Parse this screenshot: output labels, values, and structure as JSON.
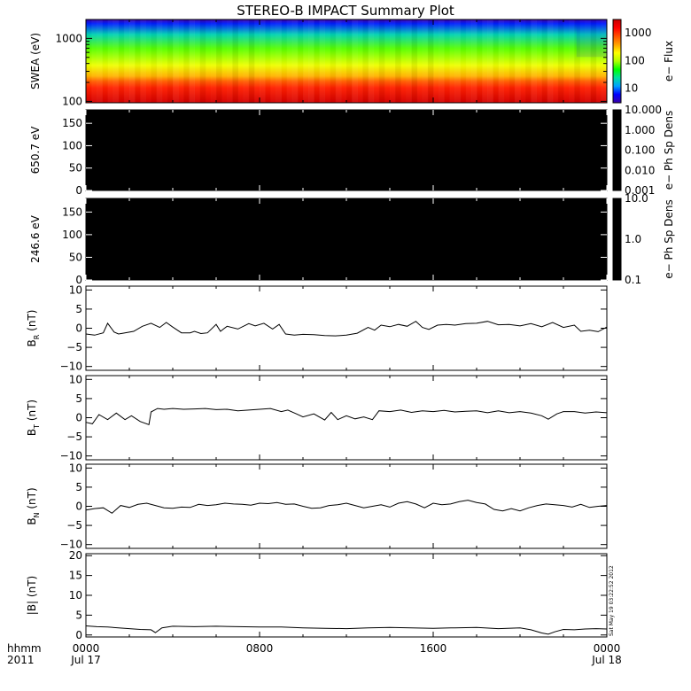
{
  "chart_data": {
    "type": "line",
    "title": "STEREO-B IMPACT Summary Plot",
    "timestamp_note": "Sat May 19 03:22:52 2012",
    "time_axis": {
      "row1_label": "hhmm",
      "row2_label": "2011",
      "hours_range": [
        0,
        24
      ],
      "ticks": [
        {
          "hour": 0,
          "hhmm": "0000",
          "date": "Jul 17"
        },
        {
          "hour": 8,
          "hhmm": "0800",
          "date": ""
        },
        {
          "hour": 16,
          "hhmm": "1600",
          "date": ""
        },
        {
          "hour": 24,
          "hhmm": "0000",
          "date": "Jul 18"
        }
      ]
    },
    "panels": [
      {
        "id": "swea",
        "type": "heatmap",
        "ylabel": "SWEA (eV)",
        "ylog": true,
        "ylim": [
          95,
          2000
        ],
        "yticks": [
          100,
          1000
        ],
        "ytick_labels": [
          "100",
          "1000"
        ],
        "colorbar": {
          "label": "e− Flux",
          "scale": "log",
          "range": [
            3,
            3000
          ],
          "tick_values": [
            10,
            100,
            1000
          ],
          "tick_labels": [
            "10",
            "100",
            "1000"
          ],
          "colors": [
            "#3b00a8",
            "#0000ff",
            "#00a0ff",
            "#00e0a0",
            "#00ff00",
            "#b0ff00",
            "#ffff00",
            "#ffa000",
            "#ff5000",
            "#ff0000",
            "#c80000"
          ]
        }
      },
      {
        "id": "pad650",
        "type": "heatmap",
        "ylabel": "650.7 eV",
        "ylim": [
          0,
          180
        ],
        "yticks": [
          0,
          50,
          100,
          150
        ],
        "ytick_labels": [
          "0",
          "50",
          "100",
          "150"
        ],
        "fill_color": "#000000",
        "colorbar": {
          "label": "e− Ph Sp Dens",
          "scale": "log",
          "range": [
            0.001,
            10
          ],
          "tick_values": [
            10,
            1,
            0.1,
            0.01,
            0.001
          ],
          "tick_labels": [
            "10.000",
            "1.000",
            "0.100",
            "0.010",
            "0.001"
          ],
          "colors": [
            "#000000"
          ]
        }
      },
      {
        "id": "pad246",
        "type": "heatmap",
        "ylabel": "246.6 eV",
        "ylim": [
          0,
          180
        ],
        "yticks": [
          0,
          50,
          100,
          150
        ],
        "ytick_labels": [
          "0",
          "50",
          "100",
          "150"
        ],
        "fill_color": "#000000",
        "colorbar": {
          "label": "e− Ph Sp Dens",
          "scale": "log",
          "range": [
            0.1,
            10
          ],
          "tick_values": [
            10,
            1,
            0.1
          ],
          "tick_labels": [
            "10.0",
            "1.0",
            "0.1"
          ],
          "colors": [
            "#000000"
          ]
        }
      },
      {
        "id": "br",
        "type": "line",
        "ylabel_main": "B",
        "ylabel_sub": "R",
        "ylabel_unit": " (nT)",
        "ylim": [
          -11,
          11
        ],
        "yticks": [
          -10,
          -5,
          0,
          5,
          10
        ],
        "ytick_labels": [
          "−10",
          "−5",
          "0",
          "5",
          "10"
        ],
        "x": [
          0,
          0.4,
          0.8,
          1.0,
          1.3,
          1.5,
          1.8,
          2.2,
          2.6,
          3.0,
          3.4,
          3.7,
          4.0,
          4.4,
          4.8,
          5.0,
          5.3,
          5.6,
          6.0,
          6.2,
          6.5,
          7.0,
          7.5,
          7.8,
          8.2,
          8.6,
          8.9,
          9.2,
          9.6,
          10.0,
          10.5,
          11.0,
          11.5,
          12.0,
          12.5,
          13.0,
          13.3,
          13.6,
          14.0,
          14.4,
          14.8,
          15.2,
          15.5,
          15.8,
          16.2,
          16.6,
          17.0,
          17.5,
          18.0,
          18.5,
          19.0,
          19.5,
          20.0,
          20.5,
          21.0,
          21.5,
          22.0,
          22.5,
          22.8,
          23.2,
          23.6,
          24.0
        ],
        "y": [
          -1.5,
          -1.8,
          -1.2,
          1.3,
          -1.0,
          -1.5,
          -1.2,
          -0.8,
          0.5,
          1.3,
          0.2,
          1.5,
          0.3,
          -1.2,
          -1.2,
          -0.8,
          -1.4,
          -1.2,
          1.0,
          -0.8,
          0.5,
          -0.2,
          1.2,
          0.6,
          1.3,
          -0.2,
          1.0,
          -1.5,
          -1.8,
          -1.6,
          -1.7,
          -1.9,
          -2.0,
          -1.8,
          -1.3,
          0.2,
          -0.5,
          0.8,
          0.4,
          1.0,
          0.5,
          1.8,
          0.2,
          -0.3,
          0.8,
          1.0,
          0.8,
          1.2,
          1.3,
          1.8,
          0.9,
          1.0,
          0.6,
          1.2,
          0.4,
          1.5,
          0.2,
          0.8,
          -0.8,
          -0.5,
          -0.9,
          0.3
        ]
      },
      {
        "id": "bt",
        "type": "line",
        "ylabel_main": "B",
        "ylabel_sub": "T",
        "ylabel_unit": " (nT)",
        "ylim": [
          -11,
          11
        ],
        "yticks": [
          -10,
          -5,
          0,
          5,
          10
        ],
        "ytick_labels": [
          "−10",
          "−5",
          "0",
          "5",
          "10"
        ],
        "x": [
          0,
          0.3,
          0.6,
          1.0,
          1.4,
          1.8,
          2.1,
          2.5,
          2.9,
          3.0,
          3.3,
          3.6,
          4.0,
          4.5,
          5.0,
          5.5,
          6.0,
          6.5,
          7.0,
          7.5,
          8.0,
          8.5,
          9.0,
          9.3,
          9.7,
          10.0,
          10.5,
          11.0,
          11.3,
          11.6,
          12.0,
          12.4,
          12.8,
          13.2,
          13.5,
          14.0,
          14.5,
          15.0,
          15.5,
          16.0,
          16.5,
          17.0,
          17.5,
          18.0,
          18.5,
          19.0,
          19.5,
          20.0,
          20.5,
          21.0,
          21.3,
          21.7,
          22.0,
          22.5,
          23.0,
          23.5,
          24.0
        ],
        "y": [
          -1.2,
          -1.6,
          0.8,
          -0.5,
          1.2,
          -0.5,
          0.5,
          -1.0,
          -1.8,
          1.5,
          2.4,
          2.2,
          2.4,
          2.2,
          2.3,
          2.4,
          2.1,
          2.2,
          1.8,
          2.0,
          2.2,
          2.4,
          1.6,
          2.0,
          1.0,
          0.2,
          1.0,
          -0.6,
          1.4,
          -0.5,
          0.5,
          -0.3,
          0.2,
          -0.5,
          1.8,
          1.6,
          2.0,
          1.4,
          1.8,
          1.6,
          1.9,
          1.5,
          1.7,
          1.8,
          1.3,
          1.8,
          1.3,
          1.6,
          1.2,
          0.5,
          -0.4,
          1.0,
          1.6,
          1.6,
          1.2,
          1.5,
          1.3
        ]
      },
      {
        "id": "bn",
        "type": "line",
        "ylabel_main": "B",
        "ylabel_sub": "N",
        "ylabel_unit": " (nT)",
        "ylim": [
          -11,
          11
        ],
        "yticks": [
          -10,
          -5,
          0,
          5,
          10
        ],
        "ytick_labels": [
          "−10",
          "−5",
          "0",
          "5",
          "10"
        ],
        "x": [
          0,
          0.4,
          0.8,
          1.2,
          1.6,
          2.0,
          2.4,
          2.8,
          3.2,
          3.6,
          4.0,
          4.4,
          4.8,
          5.2,
          5.6,
          6.0,
          6.4,
          6.8,
          7.2,
          7.6,
          8.0,
          8.4,
          8.8,
          9.2,
          9.6,
          10.0,
          10.4,
          10.8,
          11.2,
          11.6,
          12.0,
          12.4,
          12.8,
          13.2,
          13.6,
          14.0,
          14.4,
          14.8,
          15.2,
          15.6,
          16.0,
          16.4,
          16.8,
          17.2,
          17.6,
          18.0,
          18.4,
          18.8,
          19.2,
          19.6,
          20.0,
          20.4,
          20.8,
          21.2,
          21.6,
          22.0,
          22.4,
          22.8,
          23.2,
          23.6,
          24.0
        ],
        "y": [
          -1.0,
          -0.6,
          -0.4,
          -1.8,
          0.2,
          -0.3,
          0.5,
          0.8,
          0.2,
          -0.4,
          -0.5,
          -0.2,
          -0.3,
          0.5,
          0.2,
          0.4,
          0.8,
          0.6,
          0.5,
          0.3,
          0.8,
          0.7,
          1.0,
          0.5,
          0.6,
          0.0,
          -0.5,
          -0.4,
          0.2,
          0.4,
          0.8,
          0.2,
          -0.4,
          0.0,
          0.4,
          -0.2,
          0.8,
          1.2,
          0.6,
          -0.4,
          0.8,
          0.4,
          0.6,
          1.2,
          1.6,
          1.0,
          0.6,
          -0.8,
          -1.2,
          -0.6,
          -1.2,
          -0.4,
          0.2,
          0.6,
          0.4,
          0.2,
          -0.2,
          0.5,
          -0.3,
          0.0,
          0.2
        ]
      },
      {
        "id": "bmag",
        "type": "line",
        "ylabel_main": "|B| (nT)",
        "ylabel_sub": "",
        "ylabel_unit": "",
        "ylim": [
          -0.5,
          20.5
        ],
        "yticks": [
          0,
          5,
          10,
          15,
          20
        ],
        "ytick_labels": [
          "0",
          "5",
          "10",
          "15",
          "20"
        ],
        "x": [
          0,
          0.5,
          1.0,
          1.5,
          2.0,
          2.5,
          3.0,
          3.2,
          3.5,
          4.0,
          5.0,
          6.0,
          7.0,
          8.0,
          9.0,
          10.0,
          11.0,
          12.0,
          13.0,
          14.0,
          15.0,
          16.0,
          17.0,
          18.0,
          19.0,
          20.0,
          20.5,
          21.0,
          21.3,
          21.6,
          22.0,
          22.5,
          23.0,
          23.5,
          24.0
        ],
        "y": [
          2.3,
          2.1,
          2.0,
          1.8,
          1.6,
          1.4,
          1.3,
          0.6,
          1.8,
          2.2,
          2.1,
          2.2,
          2.1,
          2.0,
          2.0,
          1.8,
          1.7,
          1.6,
          1.8,
          1.9,
          1.8,
          1.7,
          1.8,
          1.9,
          1.6,
          1.8,
          1.3,
          0.5,
          0.2,
          0.8,
          1.4,
          1.3,
          1.5,
          1.6,
          1.5
        ]
      }
    ]
  }
}
